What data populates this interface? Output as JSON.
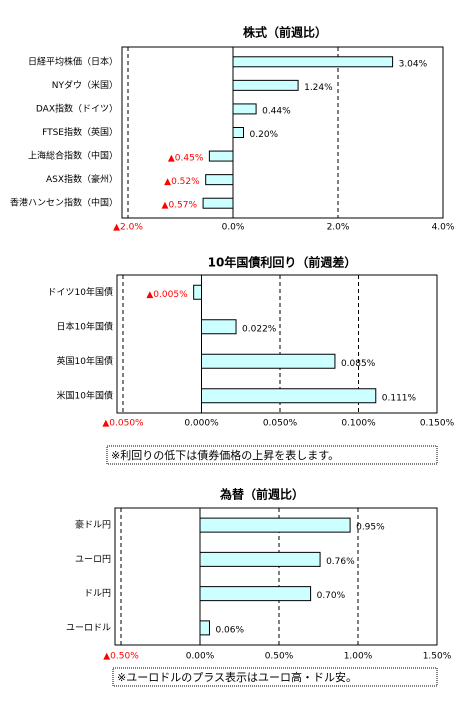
{
  "chart_data": [
    {
      "type": "hbar",
      "title": "株式（前週比）",
      "categories": [
        "日経平均株価（日本）",
        "NYダウ（米国）",
        "DAX指数（ドイツ）",
        "FTSE指数（英国）",
        "上海総合指数（中国）",
        "ASX指数（豪州）",
        "香港ハンセン指数（中国）"
      ],
      "values": [
        3.04,
        1.24,
        0.44,
        0.2,
        -0.45,
        -0.52,
        -0.57
      ],
      "value_labels": [
        "3.04%",
        "1.24%",
        "0.44%",
        "0.20%",
        "▲0.45%",
        "▲0.52%",
        "▲0.57%"
      ],
      "color": "#ccffff",
      "xlim": [
        -2,
        4
      ],
      "xticks": [
        {
          "value": -2,
          "label": "▲2.0%"
        },
        {
          "value": 0,
          "label": "0.0%"
        },
        {
          "value": 2,
          "label": "2.0%"
        },
        {
          "value": 4,
          "label": "4.0%"
        }
      ],
      "grid": true
    },
    {
      "type": "hbar",
      "title": "10年国債利回り（前週差）",
      "categories": [
        "ドイツ10年国債",
        "日本10年国債",
        "英国10年国債",
        "米国10年国債"
      ],
      "values": [
        -0.005,
        0.022,
        0.085,
        0.111
      ],
      "value_labels": [
        "▲0.005%",
        "0.022%",
        "0.085%",
        "0.111%"
      ],
      "color": "#ccffff",
      "xlim": [
        -0.05,
        0.15
      ],
      "xticks": [
        {
          "value": -0.05,
          "label": "▲0.050%"
        },
        {
          "value": 0,
          "label": "0.000%"
        },
        {
          "value": 0.05,
          "label": "0.050%"
        },
        {
          "value": 0.1,
          "label": "0.100%"
        },
        {
          "value": 0.15,
          "label": "0.150%"
        }
      ],
      "grid": true,
      "note": "※利回りの低下は債券価格の上昇を表します。"
    },
    {
      "type": "hbar",
      "title": "為替（前週比）",
      "categories": [
        "豪ドル円",
        "ユーロ円",
        "ドル円",
        "ユーロドル"
      ],
      "values": [
        0.95,
        0.76,
        0.7,
        0.06
      ],
      "value_labels": [
        "0.95%",
        "0.76%",
        "0.70%",
        "0.06%"
      ],
      "color": "#ccffff",
      "xlim": [
        -0.5,
        1.5
      ],
      "xticks": [
        {
          "value": -0.5,
          "label": "▲0.50%"
        },
        {
          "value": 0,
          "label": "0.00%"
        },
        {
          "value": 0.5,
          "label": "0.50%"
        },
        {
          "value": 1,
          "label": "1.00%"
        },
        {
          "value": 1.5,
          "label": "1.50%"
        }
      ],
      "grid": true,
      "note": "※ユーロドルのプラス表示はユーロ高・ドル安。"
    }
  ]
}
